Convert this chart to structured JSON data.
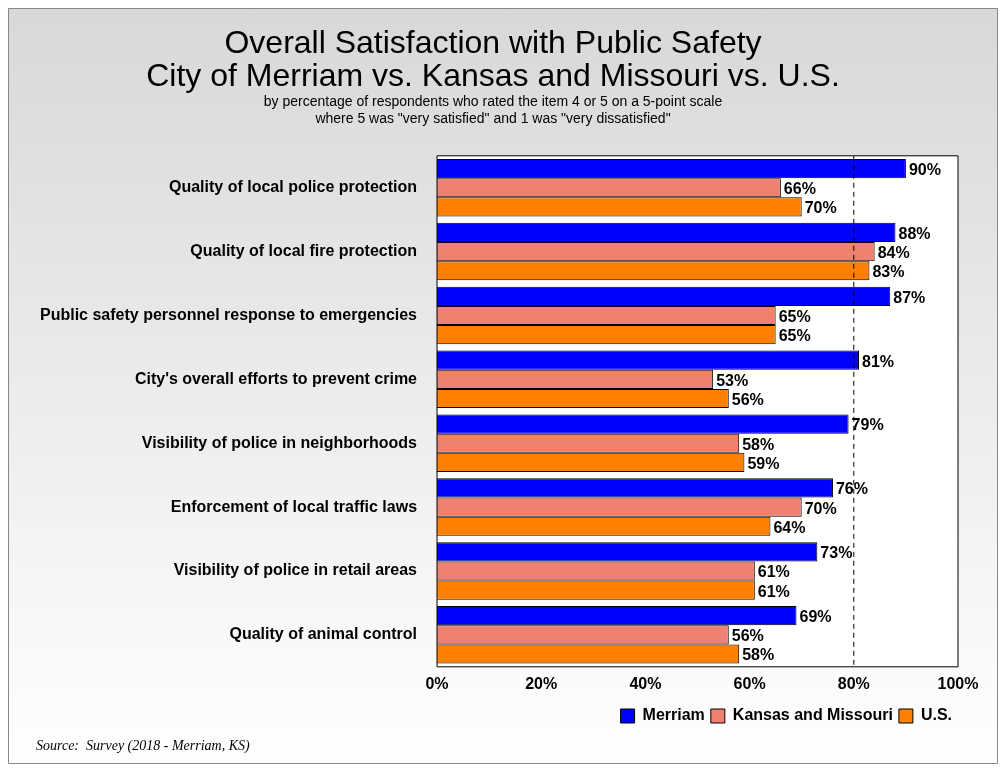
{
  "chart_data": {
    "type": "bar",
    "orientation": "horizontal",
    "title": "Overall Satisfaction with Public Safety\nCity of Merriam vs. Kansas and Missouri vs. U.S.",
    "subtitle": "by percentage of respondents who rated the item 4 or 5 on a 5-point scale\nwhere 5 was \"very satisfied\" and 1 was \"very dissatisfied\"",
    "categories": [
      "Quality of local police protection",
      "Quality of local fire protection",
      "Public safety personnel response to emergencies",
      "City's overall efforts to prevent crime",
      "Visibility of police in neighborhoods",
      "Enforcement of local traffic laws",
      "Visibility of police in retail areas",
      "Quality of animal control"
    ],
    "series": [
      {
        "name": "Merriam",
        "color": "#0000ff",
        "values": [
          90,
          88,
          87,
          81,
          79,
          76,
          73,
          69
        ],
        "value_labels": [
          "90%",
          "88%",
          "87%",
          "81%",
          "79%",
          "76%",
          "73%",
          "69%"
        ]
      },
      {
        "name": "Kansas and Missouri",
        "color": "#f08070",
        "values": [
          66,
          84,
          65,
          53,
          58,
          70,
          61,
          56
        ],
        "value_labels": [
          "66%",
          "84%",
          "65%",
          "53%",
          "58%",
          "70%",
          "61%",
          "56%"
        ]
      },
      {
        "name": "U.S.",
        "color": "#ff8000",
        "values": [
          70,
          83,
          65,
          56,
          59,
          64,
          61,
          58
        ],
        "value_labels": [
          "70%",
          "83%",
          "65%",
          "56%",
          "59%",
          "64%",
          "61%",
          "58%"
        ]
      }
    ],
    "xlim": [
      0,
      100
    ],
    "xticks": [
      {
        "value": 0,
        "label": "0%"
      },
      {
        "value": 20,
        "label": "20%"
      },
      {
        "value": 40,
        "label": "40%"
      },
      {
        "value": 60,
        "label": "60%"
      },
      {
        "value": 80,
        "label": "80%"
      },
      {
        "value": 100,
        "label": "100%"
      }
    ],
    "ref_lines": [
      {
        "axis": "x",
        "value": 80,
        "line_style": "dashed"
      }
    ],
    "legend": "bottom right",
    "grid": false,
    "annotations": [
      "Source:  Survey (2018 - Merriam, KS)"
    ]
  }
}
